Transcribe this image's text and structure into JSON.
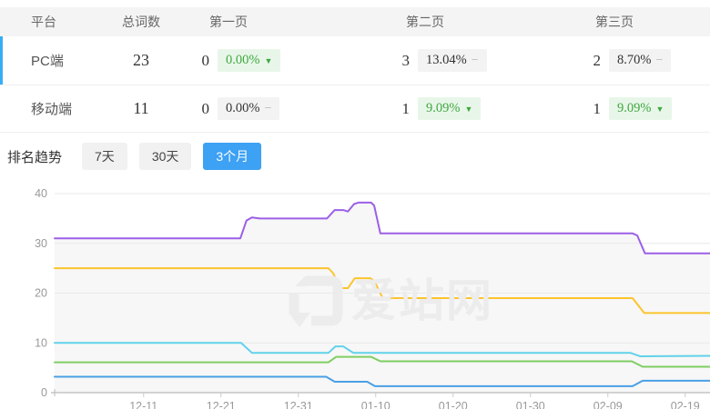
{
  "table": {
    "headers": [
      "平台",
      "总词数",
      "第一页",
      "第二页",
      "第三页"
    ],
    "rows": [
      {
        "platform": "PC端",
        "total": "23",
        "page1": {
          "count": "0",
          "pct": "0.00%",
          "trend": "down",
          "variant": "green"
        },
        "page2": {
          "count": "3",
          "pct": "13.04%",
          "trend": "flat",
          "variant": "gray"
        },
        "page3": {
          "count": "2",
          "pct": "8.70%",
          "trend": "flat",
          "variant": "gray"
        }
      },
      {
        "platform": "移动端",
        "total": "11",
        "page1": {
          "count": "0",
          "pct": "0.00%",
          "trend": "flat",
          "variant": "gray"
        },
        "page2": {
          "count": "1",
          "pct": "9.09%",
          "trend": "down",
          "variant": "green"
        },
        "page3": {
          "count": "1",
          "pct": "9.09%",
          "trend": "down",
          "variant": "green"
        }
      }
    ]
  },
  "trend_section": {
    "label": "排名趋势",
    "tabs": [
      {
        "label": "7天",
        "active": false
      },
      {
        "label": "30天",
        "active": false
      },
      {
        "label": "3个月",
        "active": true
      }
    ]
  },
  "watermark": {
    "text": "爱站网"
  },
  "colors": {
    "row_accent": "#36aef5",
    "tab_active": "#3da1f4",
    "axis_text": "#999999",
    "grid_line": "#e9e9e9"
  },
  "chart_data": {
    "type": "line",
    "title": "",
    "xlabel": "",
    "ylabel": "",
    "ylim": [
      0,
      40
    ],
    "y_ticks": [
      {
        "v": 0,
        "label": "0"
      },
      {
        "v": 10,
        "label": "10"
      },
      {
        "v": 20,
        "label": "20"
      },
      {
        "v": 30,
        "label": "30"
      },
      {
        "v": 40,
        "label": "40"
      }
    ],
    "x_ticks": [
      {
        "t": 11.5,
        "label": "12-11"
      },
      {
        "t": 21.5,
        "label": "12-21"
      },
      {
        "t": 31.5,
        "label": "12-31"
      },
      {
        "t": 41.5,
        "label": "01-10"
      },
      {
        "t": 51.5,
        "label": "01-20"
      },
      {
        "t": 61.5,
        "label": "01-30"
      },
      {
        "t": 71.5,
        "label": "02-09"
      },
      {
        "t": 81.5,
        "label": "02-19"
      }
    ],
    "x_unit": "days (t=0 ≈ 11-29, ~8.5px/day)",
    "legend": "none",
    "grid": true,
    "series": [
      {
        "name": "line-purple",
        "color": "#9c5fe6",
        "points": [
          [
            0,
            31
          ],
          [
            24,
            31
          ],
          [
            24.8,
            34.6
          ],
          [
            25.5,
            35.2
          ],
          [
            26.5,
            35
          ],
          [
            35.2,
            35
          ],
          [
            36.2,
            36.7
          ],
          [
            37.3,
            36.7
          ],
          [
            37.9,
            36.4
          ],
          [
            38.7,
            37.9
          ],
          [
            39.3,
            38.2
          ],
          [
            40.9,
            38.2
          ],
          [
            41.3,
            37.6
          ],
          [
            42.1,
            32
          ],
          [
            74.7,
            32
          ],
          [
            75.3,
            31.6
          ],
          [
            76.3,
            28
          ],
          [
            84.7,
            28
          ]
        ]
      },
      {
        "name": "line-yellow",
        "color": "#fcc42c",
        "points": [
          [
            0,
            25
          ],
          [
            35.4,
            25
          ],
          [
            36,
            24
          ],
          [
            36.9,
            21
          ],
          [
            37.9,
            21
          ],
          [
            38.8,
            23
          ],
          [
            40.8,
            23
          ],
          [
            41.3,
            22.5
          ],
          [
            42.4,
            19
          ],
          [
            74.7,
            19
          ],
          [
            76.2,
            16
          ],
          [
            84.7,
            16
          ]
        ]
      },
      {
        "name": "line-cyan",
        "color": "#61d2ea",
        "points": [
          [
            0,
            10
          ],
          [
            24.1,
            10
          ],
          [
            25.5,
            8
          ],
          [
            35.4,
            8
          ],
          [
            36.3,
            9.3
          ],
          [
            37.3,
            9.3
          ],
          [
            38.6,
            8
          ],
          [
            74.4,
            8
          ],
          [
            75.7,
            7.3
          ],
          [
            84.7,
            7.4
          ]
        ]
      },
      {
        "name": "line-green",
        "color": "#7fce62",
        "points": [
          [
            0,
            6.1
          ],
          [
            35.4,
            6.1
          ],
          [
            36.4,
            7.2
          ],
          [
            40.9,
            7.2
          ],
          [
            42.1,
            6.3
          ],
          [
            74.6,
            6.3
          ],
          [
            76,
            5.2
          ],
          [
            84.7,
            5.2
          ]
        ]
      },
      {
        "name": "line-blue",
        "color": "#4aa0e6",
        "points": [
          [
            0,
            3.2
          ],
          [
            35.1,
            3.2
          ],
          [
            36.2,
            2.2
          ],
          [
            40.4,
            2.2
          ],
          [
            41.4,
            1.3
          ],
          [
            74.7,
            1.3
          ],
          [
            76,
            2.4
          ],
          [
            84.7,
            2.4
          ]
        ]
      }
    ]
  }
}
